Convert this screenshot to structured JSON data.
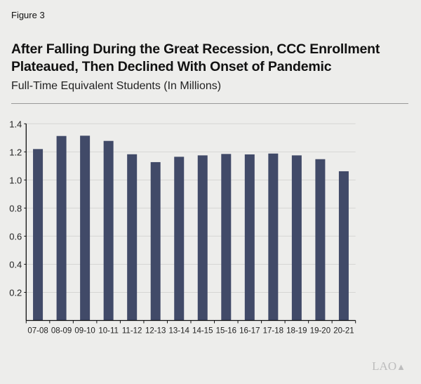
{
  "figure_label": "Figure 3",
  "chart_data": {
    "type": "bar",
    "title": "After Falling During the Great Recession, CCC Enrollment Plateaued, Then Declined With Onset of Pandemic",
    "subtitle": "Full-Time Equivalent Students (In Millions)",
    "xlabel": "",
    "ylabel": "",
    "categories": [
      "07-08",
      "08-09",
      "09-10",
      "10-11",
      "11-12",
      "12-13",
      "13-14",
      "14-15",
      "15-16",
      "16-17",
      "17-18",
      "18-19",
      "19-20",
      "20-21"
    ],
    "values": [
      1.22,
      1.313,
      1.315,
      1.278,
      1.183,
      1.127,
      1.165,
      1.175,
      1.185,
      1.182,
      1.188,
      1.175,
      1.148,
      1.062
    ],
    "ylim": [
      0,
      1.4
    ],
    "yticks": [
      "0.2",
      "0.4",
      "0.6",
      "0.8",
      "1.0",
      "1.2",
      "1.4"
    ],
    "grid": true,
    "bar_color": "#414a68"
  },
  "logo_text": "LAO"
}
